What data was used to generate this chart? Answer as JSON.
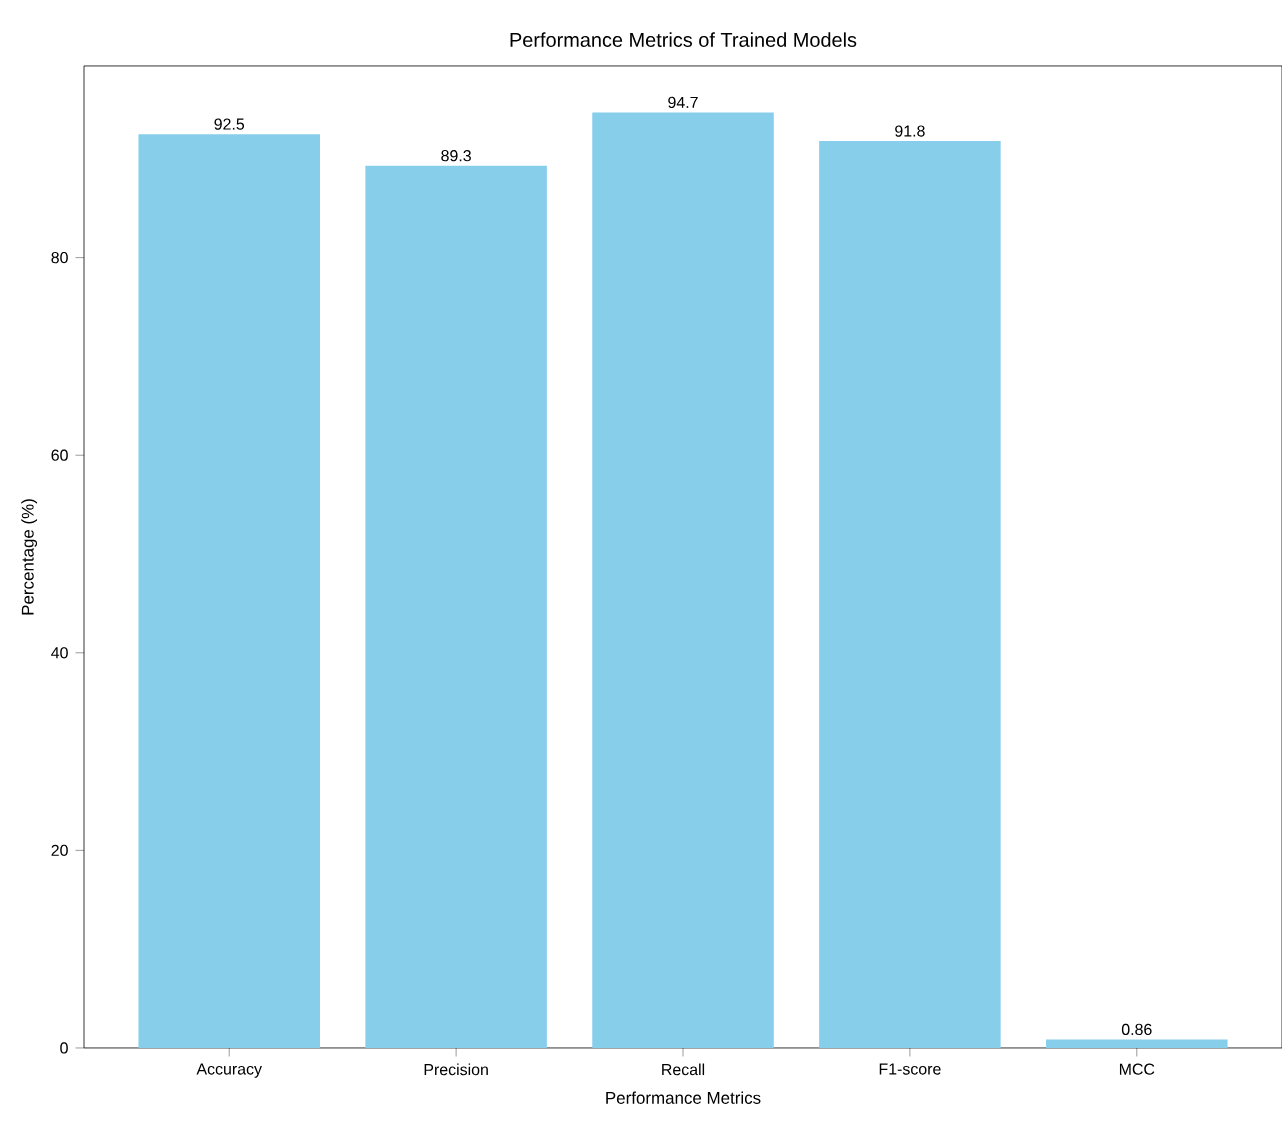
{
  "chart_data": {
    "type": "bar",
    "title": "Performance Metrics of Trained Models",
    "xlabel": "Performance Metrics",
    "ylabel": "Percentage (%)",
    "categories": [
      "Accuracy",
      "Precision",
      "Recall",
      "F1-score",
      "MCC"
    ],
    "values": [
      92.5,
      89.3,
      94.7,
      91.8,
      0.86
    ],
    "color": "#87ceeb",
    "ylim": [
      0,
      99.4
    ],
    "yticks": [
      0,
      20,
      40,
      60,
      80
    ],
    "data_labels": true
  }
}
